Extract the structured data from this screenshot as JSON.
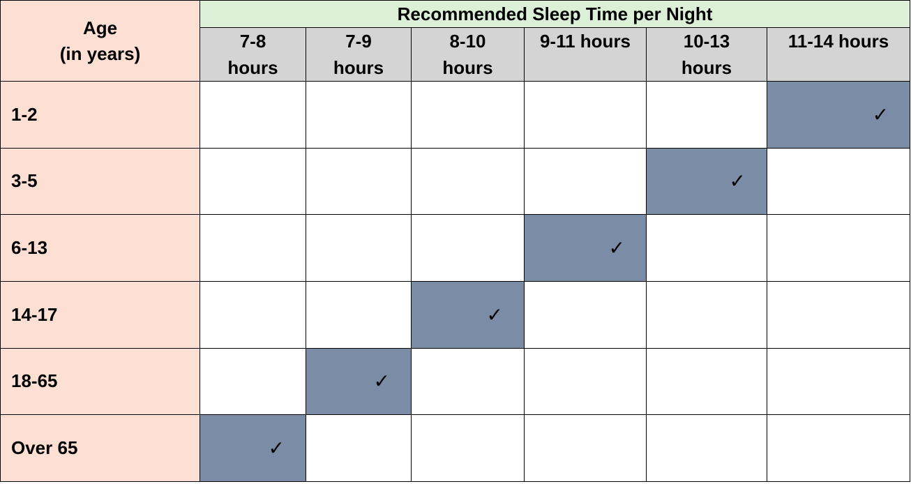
{
  "table": {
    "age_header_line1": "Age",
    "age_header_line2": "(in years)",
    "group_header": "Recommended Sleep Time per Night",
    "columns": [
      {
        "line1": "7-8",
        "line2": "hours"
      },
      {
        "line1": "7-9",
        "line2": "hours"
      },
      {
        "line1": "8-10",
        "line2": "hours"
      },
      {
        "line1": "9-11 hours",
        "line2": ""
      },
      {
        "line1": "10-13",
        "line2": "hours"
      },
      {
        "line1": "11-14 hours",
        "line2": ""
      }
    ],
    "check_mark": "✓",
    "rows": [
      {
        "age": "1-2",
        "checked": [
          false,
          false,
          false,
          false,
          false,
          true
        ]
      },
      {
        "age": "3-5",
        "checked": [
          false,
          false,
          false,
          false,
          true,
          false
        ]
      },
      {
        "age": "6-13",
        "checked": [
          false,
          false,
          false,
          true,
          false,
          false
        ]
      },
      {
        "age": "14-17",
        "checked": [
          false,
          false,
          true,
          false,
          false,
          false
        ]
      },
      {
        "age": "18-65",
        "checked": [
          false,
          true,
          false,
          false,
          false,
          false
        ]
      },
      {
        "age": "Over 65",
        "checked": [
          true,
          false,
          false,
          false,
          false,
          false
        ]
      }
    ],
    "colors": {
      "age_bg": "#fde0d3",
      "group_header_bg": "#dbf0d7",
      "column_header_bg": "#d4d4d4",
      "checked_bg": "#7a8ca6"
    }
  }
}
